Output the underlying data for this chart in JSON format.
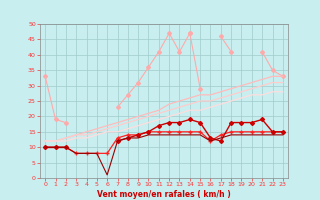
{
  "x": [
    0,
    1,
    2,
    3,
    4,
    5,
    6,
    7,
    8,
    9,
    10,
    11,
    12,
    13,
    14,
    15,
    16,
    17,
    18,
    19,
    20,
    21,
    22,
    23
  ],
  "series": [
    {
      "y": [
        33,
        19,
        18,
        null,
        null,
        null,
        null,
        null,
        null,
        null,
        null,
        null,
        null,
        null,
        null,
        null,
        null,
        null,
        null,
        null,
        null,
        null,
        null,
        null
      ],
      "color": "#ffaaaa",
      "lw": 0.8,
      "marker": "D",
      "ms": 2,
      "alpha": 1.0
    },
    {
      "y": [
        null,
        null,
        null,
        null,
        null,
        null,
        null,
        23,
        27,
        31,
        36,
        41,
        47,
        41,
        47,
        null,
        null,
        null,
        null,
        null,
        null,
        null,
        null,
        null
      ],
      "color": "#ffaaaa",
      "lw": 0.8,
      "marker": "D",
      "ms": 2,
      "alpha": 1.0
    },
    {
      "y": [
        null,
        null,
        null,
        null,
        null,
        null,
        null,
        null,
        null,
        null,
        null,
        null,
        null,
        null,
        47,
        29,
        null,
        46,
        41,
        null,
        null,
        41,
        35,
        33
      ],
      "color": "#ffaaaa",
      "lw": 0.8,
      "marker": "D",
      "ms": 2,
      "alpha": 1.0
    },
    {
      "y": [
        12,
        12,
        13,
        14,
        15,
        16,
        17,
        18,
        19,
        20,
        21,
        22,
        24,
        25,
        26,
        27,
        27,
        28,
        29,
        30,
        31,
        32,
        33,
        33
      ],
      "color": "#ffbbbb",
      "lw": 0.9,
      "marker": null,
      "ms": 2,
      "alpha": 1.0
    },
    {
      "y": [
        12,
        12,
        13,
        14,
        14,
        15,
        16,
        17,
        18,
        19,
        20,
        21,
        22,
        23,
        24,
        25,
        25,
        26,
        27,
        28,
        29,
        30,
        31,
        31
      ],
      "color": "#ffcccc",
      "lw": 0.9,
      "marker": null,
      "ms": 2,
      "alpha": 1.0
    },
    {
      "y": [
        12,
        12,
        12,
        13,
        13,
        14,
        15,
        15,
        16,
        17,
        18,
        19,
        20,
        21,
        22,
        22,
        23,
        24,
        25,
        26,
        27,
        27,
        28,
        28
      ],
      "color": "#ffdddd",
      "lw": 0.9,
      "marker": null,
      "ms": 2,
      "alpha": 1.0
    },
    {
      "y": [
        10,
        10,
        10,
        8,
        8,
        8,
        8,
        13,
        14,
        14,
        15,
        15,
        15,
        15,
        15,
        15,
        12,
        14,
        15,
        15,
        15,
        15,
        15,
        15
      ],
      "color": "#ff2222",
      "lw": 0.9,
      "marker": "+",
      "ms": 3,
      "alpha": 1.0
    },
    {
      "y": [
        10,
        10,
        10,
        null,
        null,
        null,
        null,
        12,
        13,
        14,
        15,
        17,
        18,
        18,
        19,
        18,
        13,
        12,
        18,
        18,
        18,
        19,
        15,
        15
      ],
      "color": "#cc0000",
      "lw": 1.0,
      "marker": "D",
      "ms": 2,
      "alpha": 1.0
    },
    {
      "y": [
        10,
        10,
        10,
        8,
        8,
        8,
        1,
        12,
        13,
        13,
        14,
        14,
        14,
        14,
        14,
        14,
        12,
        13,
        14,
        14,
        14,
        14,
        14,
        14
      ],
      "color": "#990000",
      "lw": 0.8,
      "marker": null,
      "ms": 2,
      "alpha": 1.0
    }
  ],
  "xlim": [
    -0.5,
    23.5
  ],
  "ylim": [
    0,
    50
  ],
  "yticks": [
    0,
    5,
    10,
    15,
    20,
    25,
    30,
    35,
    40,
    45,
    50
  ],
  "xticks": [
    0,
    1,
    2,
    3,
    4,
    5,
    6,
    7,
    8,
    9,
    10,
    11,
    12,
    13,
    14,
    15,
    16,
    17,
    18,
    19,
    20,
    21,
    22,
    23
  ],
  "xlabel": "Vent moyen/en rafales ( km/h )",
  "bg_color": "#c8eef0",
  "grid_color": "#a0cccc",
  "spine_color": "#888888",
  "tick_color": "#ff3333",
  "label_color": "#cc0000"
}
